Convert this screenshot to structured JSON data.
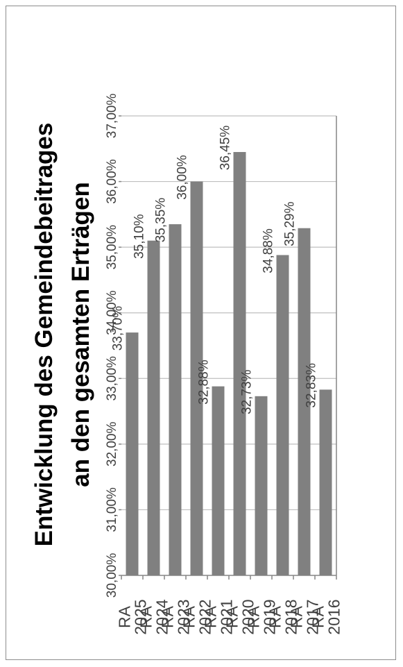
{
  "chart_data": {
    "type": "bar",
    "orientation": "horizontal",
    "rotated": "90deg-ccw",
    "title_line1": "Entwicklung des Gemeindebeitrages",
    "title_line2": "an den gesamten Erträgen",
    "categories": [
      {
        "prefix": "RA",
        "year": "2016"
      },
      {
        "prefix": "RA",
        "year": "2017"
      },
      {
        "prefix": "RA",
        "year": "2018"
      },
      {
        "prefix": "RA",
        "year": "2019"
      },
      {
        "prefix": "RA",
        "year": "2020"
      },
      {
        "prefix": "RA",
        "year": "2021"
      },
      {
        "prefix": "RA",
        "year": "2022"
      },
      {
        "prefix": "RA",
        "year": "2023"
      },
      {
        "prefix": "RA",
        "year": "2024"
      },
      {
        "prefix": "RA",
        "year": "2025"
      }
    ],
    "values": [
      32.83,
      35.29,
      34.88,
      32.73,
      36.45,
      32.88,
      36.0,
      35.35,
      35.1,
      33.7
    ],
    "data_labels": [
      "32,83%",
      "35,29%",
      "34,88%",
      "32,73%",
      "36,45%",
      "32,88%",
      "36,00%",
      "35,35%",
      "35,10%",
      "33,70%"
    ],
    "value_axis": {
      "min": 30,
      "max": 37,
      "ticks": [
        30,
        31,
        32,
        33,
        34,
        35,
        36,
        37
      ],
      "tick_labels": [
        "30,00%",
        "31,00%",
        "32,00%",
        "33,00%",
        "34,00%",
        "35,00%",
        "36,00%",
        "37,00%"
      ]
    },
    "grid": true,
    "legend": "none",
    "colors": {
      "bar": "#808080",
      "grid": "#bfbfbf",
      "axis": "#868686",
      "text": "#404040",
      "title": "#000000",
      "border": "#8c8c8c"
    }
  }
}
